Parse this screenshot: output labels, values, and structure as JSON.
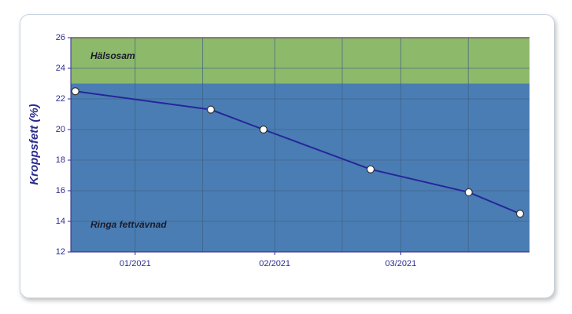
{
  "chart_data": {
    "type": "line",
    "ylabel": "Kroppsfett (%)",
    "bands": [
      {
        "label": "Hälsosam",
        "from": 23,
        "to": 26,
        "color": "#8cb96a"
      },
      {
        "label": "Ringa fettvävnad",
        "from": 12,
        "to": 23,
        "color": "#4a7db3"
      }
    ],
    "x": [
      -12.3,
      17.8,
      29.5,
      53.3,
      75.1,
      86.5
    ],
    "series": [
      {
        "name": "Kroppsfett",
        "color": "#26269a",
        "values": [
          22.5,
          21.3,
          20.0,
          17.4,
          15.9,
          14.5
        ]
      }
    ],
    "xlim": [
      -13.3,
      88.6
    ],
    "xticks": [
      {
        "value": 1,
        "label": "01/2021"
      },
      {
        "value": 32,
        "label": "02/2021"
      },
      {
        "value": 60,
        "label": "03/2021"
      }
    ],
    "xminor": [
      16,
      47,
      75
    ],
    "ylim": [
      12,
      26
    ],
    "yticks": [
      12,
      14,
      16,
      18,
      20,
      22,
      24,
      26
    ],
    "grid": true
  }
}
